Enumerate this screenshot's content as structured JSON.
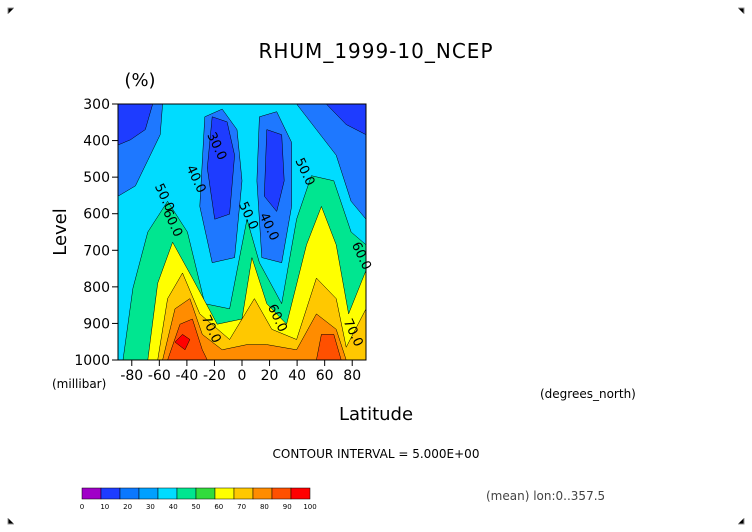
{
  "chart_data": {
    "type": "contour",
    "title": "RHUM_1999-10_NCEP",
    "units_label": "(%)",
    "xlabel": "Latitude",
    "ylabel": "Level",
    "x_units": "(degrees_north)",
    "y_units": "(millibar)",
    "xlim": [
      -90,
      90
    ],
    "ylim": [
      1000,
      300
    ],
    "x_ticks": [
      -80,
      -60,
      -40,
      -20,
      0,
      20,
      40,
      60,
      80
    ],
    "y_ticks": [
      300,
      400,
      500,
      600,
      700,
      800,
      900,
      1000
    ],
    "contour_interval_text": "CONTOUR INTERVAL = 5.000E+00",
    "mean_text": "(mean) lon:0..357.5",
    "contour_labels": [
      {
        "text": "30.0",
        "lat": -21,
        "lev": 420
      },
      {
        "text": "40.0",
        "lat": -36,
        "lev": 510
      },
      {
        "text": "50.0",
        "lat": -59,
        "lev": 560
      },
      {
        "text": "60.0",
        "lat": -53,
        "lev": 630
      },
      {
        "text": "70.0",
        "lat": -25,
        "lev": 920
      },
      {
        "text": "50.0",
        "lat": 2,
        "lev": 610
      },
      {
        "text": "40.0",
        "lat": 17,
        "lev": 640
      },
      {
        "text": "60.0",
        "lat": 23,
        "lev": 890
      },
      {
        "text": "50.0",
        "lat": 43,
        "lev": 490
      },
      {
        "text": "60.0",
        "lat": 84,
        "lev": 720
      },
      {
        "text": "70.0",
        "lat": 78,
        "lev": 930
      }
    ],
    "colorbar": {
      "labels": [
        "0",
        "10",
        "20",
        "30",
        "40",
        "50",
        "60",
        "70",
        "80",
        "90",
        "100"
      ],
      "colors": [
        "#a000c8",
        "#1e3cff",
        "#0a78ff",
        "#00a0ff",
        "#00dcff",
        "#00e690",
        "#32dc3c",
        "#ffff00",
        "#ffc800",
        "#ff8c00",
        "#ff5000",
        "#ff0000"
      ]
    },
    "grid": false
  }
}
